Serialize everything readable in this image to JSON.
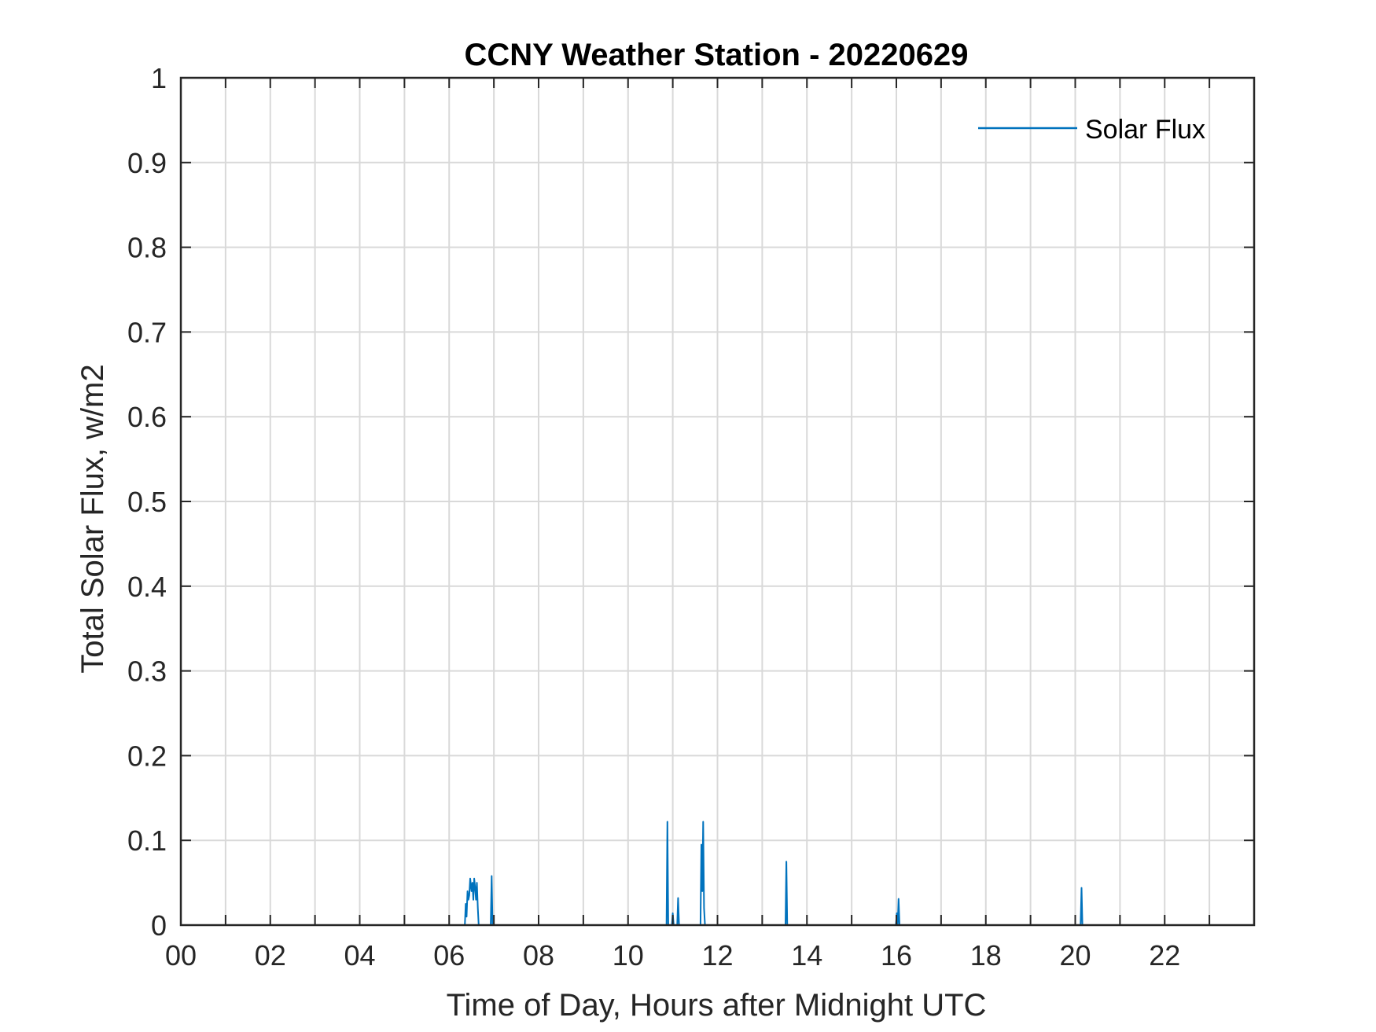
{
  "chart_data": {
    "type": "line",
    "title": "CCNY Weather Station - 20220629",
    "xlabel": "Time of Day, Hours after Midnight UTC",
    "ylabel": "Total Solar Flux, w/m2",
    "xlim": [
      0,
      24
    ],
    "ylim": [
      0,
      1
    ],
    "x_ticks": [
      0,
      2,
      4,
      6,
      8,
      10,
      12,
      14,
      16,
      18,
      20,
      22
    ],
    "x_tick_labels": [
      "00",
      "02",
      "04",
      "06",
      "08",
      "10",
      "12",
      "14",
      "16",
      "18",
      "20",
      "22"
    ],
    "x_minor_ticks": [
      1,
      3,
      5,
      7,
      9,
      11,
      13,
      15,
      17,
      19,
      21,
      23
    ],
    "y_ticks": [
      0,
      0.1,
      0.2,
      0.3,
      0.4,
      0.5,
      0.6,
      0.7,
      0.8,
      0.9,
      1
    ],
    "y_tick_labels": [
      "0",
      "0.1",
      "0.2",
      "0.3",
      "0.4",
      "0.5",
      "0.6",
      "0.7",
      "0.8",
      "0.9",
      "1"
    ],
    "grid": true,
    "legend": {
      "position": "top-right"
    },
    "series": [
      {
        "name": "Solar Flux",
        "color": "#0072BD",
        "x": [
          0,
          6.35,
          6.37,
          6.39,
          6.41,
          6.43,
          6.45,
          6.47,
          6.5,
          6.52,
          6.54,
          6.56,
          6.58,
          6.6,
          6.62,
          6.64,
          6.66,
          6.93,
          6.95,
          6.97,
          10.86,
          10.88,
          10.9,
          10.98,
          11.0,
          11.02,
          11.1,
          11.12,
          11.14,
          11.62,
          11.64,
          11.66,
          11.68,
          11.7,
          11.72,
          13.52,
          13.54,
          13.56,
          15.99,
          16.01,
          16.03,
          16.05,
          16.07,
          20.12,
          20.14,
          20.16,
          24
        ],
        "y": [
          0,
          0,
          0.025,
          0.01,
          0.04,
          0.03,
          0.035,
          0.055,
          0.04,
          0.05,
          0.03,
          0.055,
          0.045,
          0.03,
          0.05,
          0.02,
          0,
          0,
          0.058,
          0,
          0,
          0.122,
          0,
          0,
          0.014,
          0,
          0,
          0.032,
          0,
          0,
          0.095,
          0.04,
          0.122,
          0.02,
          0,
          0,
          0.075,
          0,
          0,
          0.014,
          0,
          0.031,
          0,
          0,
          0.044,
          0,
          0
        ]
      }
    ]
  }
}
